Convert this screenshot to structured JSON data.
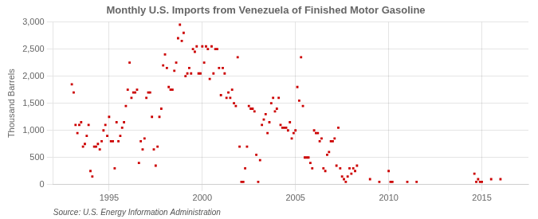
{
  "chart_data": {
    "type": "scatter",
    "title": "Monthly U.S. Imports from Venezuela of Finished Motor Gasoline",
    "ylabel": "Thousand Barrels",
    "annotations": [
      "Source: U.S. Energy Information Administration"
    ],
    "color": "#cc0000",
    "marker": "square",
    "grid": true,
    "xlim": [
      1992.0,
      2017.5
    ],
    "xticks": [
      1995,
      2000,
      2005,
      2010,
      2015
    ],
    "ylim": [
      0,
      3000
    ],
    "yticks": [
      0,
      500,
      {
        "value": 1000,
        "label": "1,000"
      },
      {
        "value": 1500,
        "label": "1,500"
      },
      {
        "value": 2000,
        "label": "2,000"
      },
      {
        "value": 2500,
        "label": "2,500"
      },
      {
        "value": 3000,
        "label": "3,000"
      }
    ],
    "x": [
      1993.0,
      1993.1,
      1993.2,
      1993.3,
      1993.4,
      1993.5,
      1993.6,
      1993.7,
      1993.8,
      1993.9,
      1994.0,
      1994.1,
      1994.2,
      1994.3,
      1994.4,
      1994.5,
      1994.6,
      1994.7,
      1994.8,
      1994.9,
      1995.0,
      1995.1,
      1995.2,
      1995.3,
      1995.4,
      1995.5,
      1995.6,
      1995.7,
      1995.8,
      1995.9,
      1996.0,
      1996.1,
      1996.2,
      1996.3,
      1996.4,
      1996.5,
      1996.6,
      1996.7,
      1996.8,
      1996.9,
      1997.0,
      1997.1,
      1997.2,
      1997.3,
      1997.4,
      1997.5,
      1997.6,
      1997.7,
      1997.8,
      1997.9,
      1998.0,
      1998.1,
      1998.2,
      1998.3,
      1998.4,
      1998.5,
      1998.6,
      1998.7,
      1998.8,
      1998.9,
      1999.0,
      1999.1,
      1999.2,
      1999.3,
      1999.4,
      1999.5,
      1999.6,
      1999.7,
      1999.8,
      1999.9,
      2000.0,
      2000.1,
      2000.2,
      2000.3,
      2000.4,
      2000.5,
      2000.6,
      2000.7,
      2000.8,
      2000.9,
      2001.0,
      2001.1,
      2001.2,
      2001.3,
      2001.4,
      2001.5,
      2001.6,
      2001.7,
      2001.8,
      2001.9,
      2002.0,
      2002.1,
      2002.2,
      2002.3,
      2002.4,
      2002.5,
      2002.6,
      2002.7,
      2002.8,
      2002.9,
      2003.0,
      2003.1,
      2003.2,
      2003.3,
      2003.4,
      2003.5,
      2003.6,
      2003.7,
      2003.8,
      2003.9,
      2004.0,
      2004.1,
      2004.2,
      2004.3,
      2004.4,
      2004.5,
      2004.6,
      2004.7,
      2004.8,
      2004.9,
      2005.0,
      2005.1,
      2005.2,
      2005.3,
      2005.4,
      2005.5,
      2005.6,
      2005.7,
      2005.8,
      2005.9,
      2006.0,
      2006.1,
      2006.2,
      2006.3,
      2006.4,
      2006.5,
      2006.6,
      2006.7,
      2006.8,
      2006.9,
      2007.0,
      2007.1,
      2007.2,
      2007.3,
      2007.4,
      2007.5,
      2007.6,
      2007.7,
      2007.8,
      2007.9,
      2008.0,
      2008.1,
      2008.2,
      2008.3,
      2009.0,
      2009.5,
      2010.0,
      2010.1,
      2010.2,
      2011.0,
      2011.5,
      2014.6,
      2014.7,
      2014.8,
      2014.9,
      2015.0,
      2015.5,
      2016.0
    ],
    "values": [
      1850,
      1700,
      1100,
      950,
      1100,
      1150,
      700,
      750,
      900,
      1100,
      250,
      150,
      700,
      700,
      750,
      650,
      800,
      1000,
      1100,
      900,
      1250,
      800,
      800,
      300,
      1150,
      800,
      900,
      1050,
      1150,
      1450,
      1750,
      2250,
      1600,
      1700,
      1700,
      1750,
      400,
      800,
      650,
      850,
      1600,
      1700,
      1700,
      1250,
      650,
      350,
      700,
      1250,
      1400,
      2200,
      2400,
      2150,
      1800,
      1750,
      1750,
      2100,
      2250,
      2700,
      2950,
      2650,
      2800,
      2000,
      2050,
      2150,
      2050,
      2500,
      2450,
      2550,
      2050,
      2050,
      2550,
      2250,
      2550,
      2500,
      1950,
      2550,
      2050,
      2500,
      2500,
      2150,
      1650,
      2150,
      2050,
      1600,
      1700,
      1600,
      1750,
      1500,
      1450,
      2350,
      700,
      50,
      50,
      300,
      700,
      1450,
      1400,
      1400,
      1350,
      550,
      50,
      450,
      1100,
      1200,
      1300,
      950,
      1150,
      1500,
      1600,
      1350,
      1400,
      1600,
      1100,
      1050,
      1050,
      1050,
      1000,
      1150,
      850,
      950,
      1000,
      1800,
      1550,
      2350,
      1450,
      500,
      500,
      500,
      400,
      300,
      1000,
      950,
      950,
      800,
      850,
      300,
      250,
      550,
      600,
      800,
      800,
      850,
      350,
      1050,
      300,
      150,
      100,
      50,
      150,
      300,
      200,
      300,
      250,
      350,
      100,
      50,
      250,
      50,
      50,
      50,
      50,
      200,
      50,
      100,
      50,
      50,
      100,
      100
    ]
  }
}
